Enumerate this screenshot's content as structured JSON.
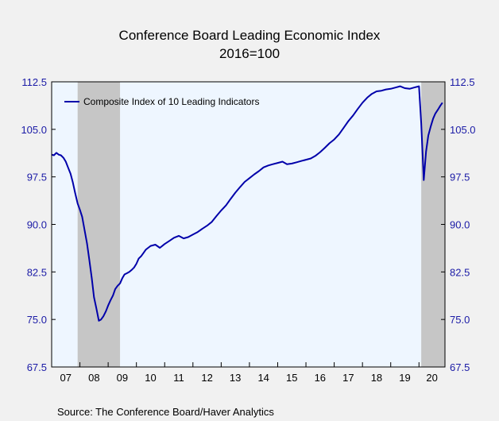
{
  "chart_data": {
    "type": "line",
    "title": "Conference Board Leading Economic Index",
    "subtitle": "2016=100",
    "source": "Source:  The Conference Board/Haver Analytics",
    "ylim": [
      67.5,
      112.5
    ],
    "yticks": [
      "67.5",
      "75.0",
      "82.5",
      "90.0",
      "97.5",
      "105.0",
      "112.5"
    ],
    "ytick_values": [
      67.5,
      75.0,
      82.5,
      90.0,
      97.5,
      105.0,
      112.5
    ],
    "xlim": [
      2007.0,
      2020.92
    ],
    "xticks": [
      "07",
      "08",
      "09",
      "10",
      "11",
      "12",
      "13",
      "14",
      "15",
      "16",
      "17",
      "18",
      "19",
      "20"
    ],
    "xtick_years": [
      2007,
      2008,
      2009,
      2010,
      2011,
      2012,
      2013,
      2014,
      2015,
      2016,
      2017,
      2018,
      2019,
      2020
    ],
    "recessions": [
      [
        2007.92,
        2009.42
      ],
      [
        2020.08,
        2020.92
      ]
    ],
    "legend": {
      "position": "top-left"
    },
    "colors": {
      "line": "#0000aa",
      "plot_bg": "#eef6ff",
      "recession": "#c6c6c6",
      "axis_text": "#1a1aa6"
    },
    "series": [
      {
        "name": "Composite Index of 10 Leading Indicators",
        "x": [
          2007.0,
          2007.08,
          2007.17,
          2007.25,
          2007.33,
          2007.42,
          2007.5,
          2007.58,
          2007.67,
          2007.75,
          2007.83,
          2007.92,
          2008.0,
          2008.08,
          2008.17,
          2008.25,
          2008.33,
          2008.42,
          2008.5,
          2008.58,
          2008.67,
          2008.75,
          2008.83,
          2008.92,
          2009.0,
          2009.08,
          2009.17,
          2009.25,
          2009.33,
          2009.42,
          2009.5,
          2009.58,
          2009.67,
          2009.75,
          2009.83,
          2009.92,
          2010.0,
          2010.08,
          2010.17,
          2010.25,
          2010.33,
          2010.5,
          2010.67,
          2010.83,
          2011.0,
          2011.17,
          2011.33,
          2011.5,
          2011.67,
          2011.83,
          2012.0,
          2012.17,
          2012.33,
          2012.5,
          2012.67,
          2012.83,
          2013.0,
          2013.17,
          2013.33,
          2013.5,
          2013.67,
          2013.83,
          2014.0,
          2014.17,
          2014.33,
          2014.5,
          2014.67,
          2014.83,
          2015.0,
          2015.17,
          2015.33,
          2015.5,
          2015.67,
          2015.83,
          2016.0,
          2016.17,
          2016.33,
          2016.5,
          2016.67,
          2016.83,
          2017.0,
          2017.17,
          2017.33,
          2017.5,
          2017.67,
          2017.83,
          2018.0,
          2018.17,
          2018.33,
          2018.5,
          2018.67,
          2018.83,
          2019.0,
          2019.17,
          2019.33,
          2019.5,
          2019.67,
          2019.83,
          2020.0,
          2020.08,
          2020.17,
          2020.25,
          2020.33,
          2020.42,
          2020.5,
          2020.58,
          2020.67,
          2020.75,
          2020.83
        ],
        "values": [
          101.0,
          100.9,
          101.3,
          101.0,
          100.9,
          100.5,
          99.9,
          99.0,
          98.0,
          96.6,
          95.0,
          93.3,
          92.3,
          91.2,
          89.0,
          87.0,
          84.5,
          81.5,
          78.5,
          76.8,
          74.8,
          75.0,
          75.5,
          76.3,
          77.2,
          78.0,
          78.8,
          79.8,
          80.3,
          80.7,
          81.5,
          82.1,
          82.3,
          82.5,
          82.8,
          83.2,
          83.8,
          84.6,
          85.0,
          85.5,
          86.0,
          86.6,
          86.8,
          86.3,
          86.9,
          87.4,
          87.9,
          88.2,
          87.8,
          88.0,
          88.4,
          88.8,
          89.3,
          89.8,
          90.4,
          91.3,
          92.2,
          93.0,
          94.0,
          95.0,
          95.9,
          96.7,
          97.3,
          97.9,
          98.4,
          99.0,
          99.3,
          99.5,
          99.7,
          99.9,
          99.5,
          99.6,
          99.8,
          100.0,
          100.2,
          100.4,
          100.8,
          101.4,
          102.1,
          102.8,
          103.4,
          104.2,
          105.2,
          106.3,
          107.2,
          108.2,
          109.2,
          110.0,
          110.6,
          111.0,
          111.1,
          111.3,
          111.4,
          111.6,
          111.8,
          111.5,
          111.4,
          111.6,
          111.8,
          106.0,
          97.0,
          101.5,
          104.0,
          105.5,
          106.7,
          107.5,
          108.1,
          108.7,
          109.2
        ]
      }
    ]
  }
}
